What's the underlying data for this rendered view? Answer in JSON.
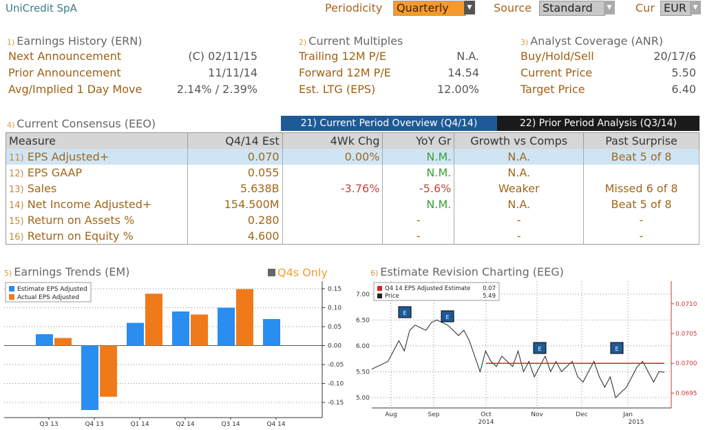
{
  "header": {
    "title": "UniCredit SpA",
    "periodicity_label": "Periodicity",
    "periodicity_value": "Quarterly",
    "source_label": "Source",
    "source_value": "Standard",
    "cur_label": "Cur",
    "cur_value": "EUR"
  },
  "ern": {
    "num": "1)",
    "title": "Earnings History (ERN)",
    "rows": [
      {
        "label": "Next Announcement",
        "value": "(C)  02/11/15"
      },
      {
        "label": "Prior Announcement",
        "value": "11/11/14"
      },
      {
        "label": "Avg/Implied 1 Day Move",
        "value": "2.14% / 2.39%"
      }
    ]
  },
  "multiples": {
    "num": "2)",
    "title": "Current Multiples",
    "rows": [
      {
        "label": "Trailing 12M P/E",
        "value": "N.A."
      },
      {
        "label": "Forward 12M P/E",
        "value": "14.54"
      },
      {
        "label": "Est. LTG (EPS)",
        "value": "12.00%"
      }
    ]
  },
  "anr": {
    "num": "3)",
    "title": "Analyst Coverage (ANR)",
    "rows": [
      {
        "label": "Buy/Hold/Sell",
        "value": "20/17/6"
      },
      {
        "label": "Current Price",
        "value": "5.50"
      },
      {
        "label": "Target Price",
        "value": "6.40"
      }
    ]
  },
  "consensus": {
    "num": "4)",
    "title": "Current Consensus (EEO)",
    "tab_current": "21) Current Period Overview (Q4/14)",
    "tab_prior": "22) Prior Period Analysis (Q3/14)",
    "headers": [
      "Measure",
      "Q4/14 Est",
      "4Wk Chg",
      "YoY Gr",
      "Growth vs Comps",
      "Past Surprise"
    ],
    "rows": [
      {
        "num": "11)",
        "measure": "EPS Adjusted+",
        "est": "0.070",
        "chg": "0.00%",
        "yoy": "N.M.",
        "comps": "N.A.",
        "surprise": "Beat 5 of 8"
      },
      {
        "num": "12)",
        "measure": "EPS GAAP",
        "est": "0.055",
        "chg": "",
        "yoy": "N.M.",
        "comps": "N.A.",
        "surprise": ""
      },
      {
        "num": "13)",
        "measure": "Sales",
        "est": "5.638B",
        "chg": "-3.76%",
        "yoy": "-5.6%",
        "comps": "Weaker",
        "surprise": "Missed 6 of 8"
      },
      {
        "num": "14)",
        "measure": "Net Income Adjusted+",
        "est": "154.500M",
        "chg": "",
        "yoy": "N.M.",
        "comps": "N.A.",
        "surprise": "Beat 5 of 8"
      },
      {
        "num": "15)",
        "measure": "Return on Assets %",
        "est": "0.280",
        "chg": "",
        "yoy": "-",
        "comps": "-",
        "surprise": "-"
      },
      {
        "num": "16)",
        "measure": "Return on Equity %",
        "est": "4.600",
        "chg": "",
        "yoy": "-",
        "comps": "-",
        "surprise": "-"
      }
    ]
  },
  "em": {
    "num": "5)",
    "title": "Earnings Trends (EM)",
    "q4s_label": "Q4s Only"
  },
  "eeg": {
    "num": "6)",
    "title": "Estimate Revision Charting (EEG)"
  },
  "colors": {
    "estimate": "#2a8df0",
    "actual": "#f07a1a",
    "price_line": "#222222",
    "estimate_line": "#dd2222",
    "tab_active": "#1e5a96",
    "tab_inactive": "#1a1a1a"
  },
  "chart_data": [
    {
      "type": "bar",
      "categories": [
        "Q3 13",
        "Q4 13",
        "Q1 14",
        "Q2 14",
        "Q3 14",
        "Q4 14"
      ],
      "series": [
        {
          "name": "Estimate EPS Adjusted",
          "values": [
            0.03,
            -0.17,
            0.06,
            0.09,
            0.1,
            0.07
          ]
        },
        {
          "name": "Actual EPS Adjusted",
          "values": [
            0.02,
            -0.135,
            0.137,
            0.082,
            0.149,
            null
          ]
        }
      ],
      "yticks": [
        "0.15",
        "0.10",
        "0.05",
        "0.00",
        "-0.05",
        "-0.10",
        "-0.15"
      ],
      "ylim": [
        -0.19,
        0.17
      ],
      "grid": true,
      "legend": "top-left"
    },
    {
      "type": "line",
      "x_labels": [
        "Aug",
        "Sep",
        "Oct",
        "Nov",
        "Dec",
        "Jan"
      ],
      "x_year_labels": [
        "2014",
        "2015"
      ],
      "left_ticks": [
        "7.00",
        "6.50",
        "6.00",
        "5.50",
        "5.00"
      ],
      "left_ylim": [
        4.8,
        7.25
      ],
      "right_ticks": [
        "0.0710",
        "0.0705",
        "0.0700",
        "0.0695"
      ],
      "right_ylim": [
        0.06925,
        0.07138
      ],
      "legend": "top-left",
      "series": [
        {
          "name": "Q4 14 EPS Adjusted Estimate",
          "last": "0.07",
          "axis": "right",
          "x_start": "Oct",
          "values": [
            0.07
          ]
        },
        {
          "name": "Price",
          "last": "5.49",
          "axis": "left",
          "values": [
            5.55,
            5.6,
            5.65,
            5.7,
            5.9,
            6.1,
            5.9,
            6.3,
            6.4,
            6.35,
            6.3,
            6.45,
            6.5,
            6.45,
            6.4,
            6.3,
            6.2,
            6.3,
            6.1,
            5.8,
            5.5,
            5.9,
            5.7,
            5.6,
            5.8,
            5.7,
            5.6,
            5.9,
            5.5,
            5.7,
            5.4,
            5.6,
            5.8,
            5.5,
            5.7,
            5.5,
            5.6,
            5.7,
            5.4,
            5.3,
            5.5,
            5.7,
            5.4,
            5.2,
            5.4,
            5.0,
            5.1,
            5.2,
            5.4,
            5.6,
            5.7,
            5.5,
            5.3,
            5.5,
            5.49
          ]
        }
      ],
      "markers": [
        {
          "x": "Aug",
          "label": "E"
        },
        {
          "x": "Sep",
          "label": "E"
        },
        {
          "x": "Nov",
          "label": "E"
        },
        {
          "x": "Jan",
          "label": "E"
        }
      ]
    }
  ]
}
